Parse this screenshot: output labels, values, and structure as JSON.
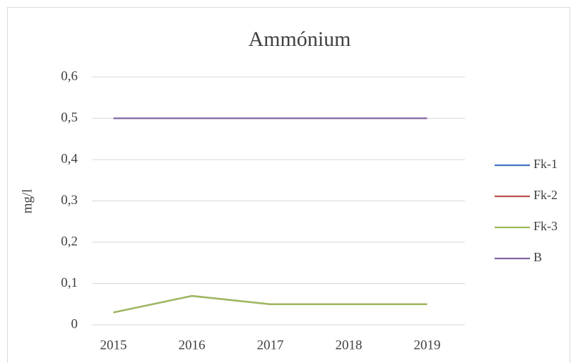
{
  "chart_data": {
    "type": "line",
    "title": "Ammónium",
    "y_label": "mg/l",
    "categories": [
      "2015",
      "2016",
      "2017",
      "2018",
      "2019"
    ],
    "series": [
      {
        "name": "Fk-1",
        "color": "#4472c4",
        "values": [
          0.03,
          0.07,
          0.05,
          0.05,
          0.05
        ]
      },
      {
        "name": "Fk-2",
        "color": "#c0504d",
        "values": [
          0.03,
          0.07,
          0.05,
          0.05,
          0.05
        ]
      },
      {
        "name": "Fk-3",
        "color": "#9bbb59",
        "values": [
          0.03,
          0.07,
          0.05,
          0.05,
          0.05
        ]
      },
      {
        "name": "B",
        "color": "#8064a2",
        "values": [
          0.5,
          0.5,
          0.5,
          0.5,
          0.5
        ]
      }
    ],
    "ylim": [
      0,
      0.6
    ],
    "yticks": [
      0,
      {
        "value": 0.1,
        "label": "0,1"
      },
      {
        "value": 0.2,
        "label": "0,2"
      },
      {
        "value": 0.3,
        "label": "0,3"
      },
      {
        "value": 0.4,
        "label": "0,4"
      },
      {
        "value": 0.5,
        "label": "0,5"
      },
      {
        "value": 0.6,
        "label": "0,6"
      }
    ],
    "grid": true,
    "legend": "right"
  }
}
